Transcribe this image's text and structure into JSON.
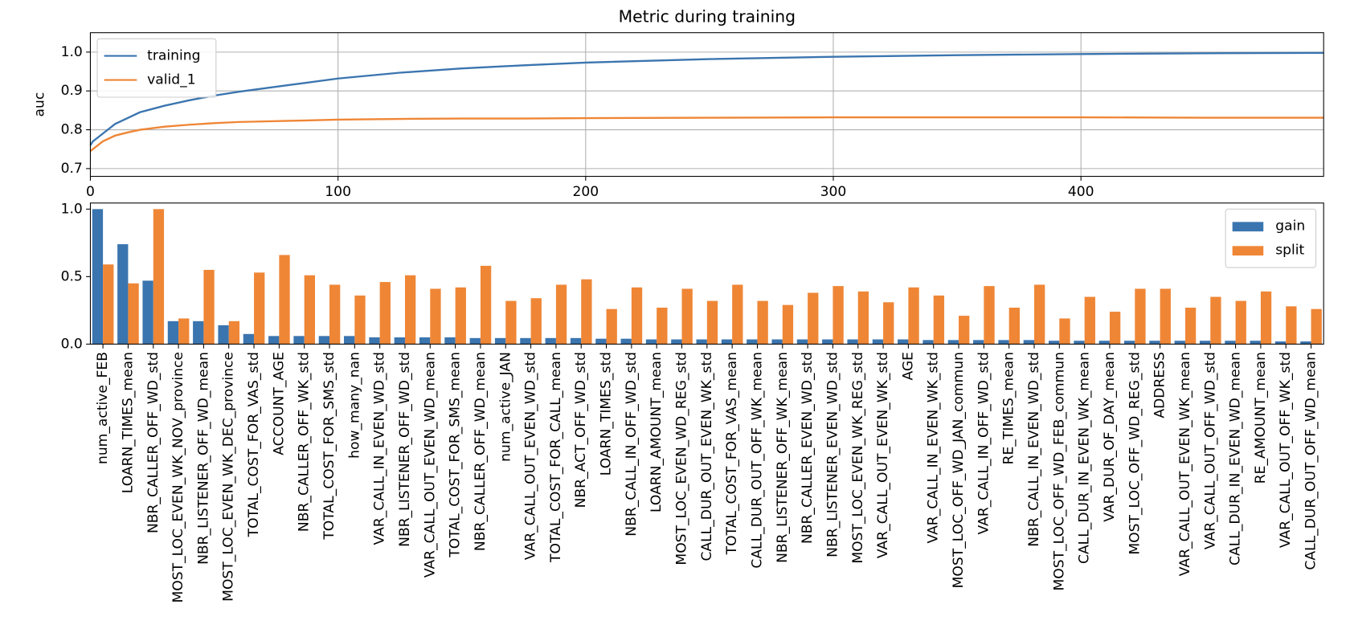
{
  "chart_data": [
    {
      "type": "line",
      "title": "Metric during training",
      "ylabel": "auc",
      "x": [
        0,
        1,
        2,
        5,
        10,
        15,
        20,
        30,
        40,
        50,
        60,
        80,
        100,
        125,
        150,
        175,
        200,
        250,
        300,
        350,
        400,
        450,
        498
      ],
      "series": [
        {
          "name": "training",
          "color": "#3b75af",
          "values": [
            0.76,
            0.77,
            0.775,
            0.79,
            0.815,
            0.83,
            0.845,
            0.862,
            0.876,
            0.888,
            0.898,
            0.915,
            0.932,
            0.947,
            0.958,
            0.966,
            0.973,
            0.982,
            0.988,
            0.992,
            0.995,
            0.997,
            0.998
          ]
        },
        {
          "name": "valid_1",
          "color": "#ef8636",
          "values": [
            0.745,
            0.75,
            0.755,
            0.77,
            0.785,
            0.793,
            0.8,
            0.808,
            0.813,
            0.817,
            0.82,
            0.823,
            0.826,
            0.828,
            0.829,
            0.829,
            0.83,
            0.831,
            0.832,
            0.832,
            0.832,
            0.831,
            0.831
          ]
        }
      ],
      "xlim": [
        0,
        498
      ],
      "xticks": [
        0,
        100,
        200,
        300,
        400
      ],
      "ylim": [
        0.68,
        1.05
      ],
      "yticks": [
        0.7,
        0.8,
        0.9,
        {
          "value": 1.0,
          "label": "1.0"
        }
      ],
      "grid": true,
      "legend": "upper-left"
    },
    {
      "type": "bar",
      "categories": [
        "num_active_FEB",
        "LOARN_TIMES_mean",
        "NBR_CALLER_OFF_WD_std",
        "MOST_LOC_EVEN_WK_NOV_province",
        "NBR_LISTENER_OFF_WD_mean",
        "MOST_LOC_EVEN_WK_DEC_province",
        "TOTAL_COST_FOR_VAS_std",
        "ACCOUNT_AGE",
        "NBR_CALLER_OFF_WK_std",
        "TOTAL_COST_FOR_SMS_std",
        "how_many_nan",
        "VAR_CALL_IN_EVEN_WD_std",
        "NBR_LISTENER_OFF_WD_std",
        "VAR_CALL_OUT_EVEN_WD_mean",
        "TOTAL_COST_FOR_SMS_mean",
        "NBR_CALLER_OFF_WD_mean",
        "num_active_JAN",
        "VAR_CALL_OUT_EVEN_WD_std",
        "TOTAL_COST_FOR_CALL_mean",
        "NBR_ACT_OFF_WD_std",
        "LOARN_TIMES_std",
        "NBR_CALL_IN_OFF_WD_std",
        "LOARN_AMOUNT_mean",
        "MOST_LOC_EVEN_WD_REG_std",
        "CALL_DUR_OUT_EVEN_WK_std",
        "TOTAL_COST_FOR_VAS_mean",
        "CALL_DUR_OUT_OFF_WK_mean",
        "NBR_LISTENER_OFF_WK_mean",
        "NBR_CALLER_EVEN_WD_std",
        "NBR_LISTENER_EVEN_WD_std",
        "MOST_LOC_EVEN_WK_REG_std",
        "VAR_CALL_OUT_EVEN_WK_std",
        "AGE",
        "VAR_CALL_IN_EVEN_WK_std",
        "MOST_LOC_OFF_WD_JAN_commun",
        "VAR_CALL_IN_OFF_WD_std",
        "RE_TIMES_mean",
        "NBR_CALL_IN_EVEN_WD_std",
        "MOST_LOC_OFF_WD_FEB_commun",
        "CALL_DUR_IN_EVEN_WK_mean",
        "VAR_DUR_OF_DAY_mean",
        "MOST_LOC_OFF_WD_REG_std",
        "ADDRESS",
        "VAR_CALL_OUT_EVEN_WK_mean",
        "VAR_CALL_OUT_OFF_WD_std",
        "CALL_DUR_IN_EVEN_WD_mean",
        "RE_AMOUNT_mean",
        "VAR_CALL_OUT_OFF_WK_std",
        "CALL_DUR_OUT_OFF_WD_mean"
      ],
      "series": [
        {
          "name": "gain",
          "color": "#3b75af",
          "values": [
            1.0,
            0.74,
            0.47,
            0.17,
            0.17,
            0.14,
            0.075,
            0.06,
            0.06,
            0.06,
            0.06,
            0.05,
            0.05,
            0.05,
            0.05,
            0.045,
            0.045,
            0.045,
            0.045,
            0.045,
            0.04,
            0.04,
            0.035,
            0.035,
            0.035,
            0.035,
            0.035,
            0.035,
            0.035,
            0.035,
            0.035,
            0.035,
            0.035,
            0.03,
            0.03,
            0.03,
            0.03,
            0.03,
            0.025,
            0.025,
            0.025,
            0.025,
            0.025,
            0.025,
            0.025,
            0.025,
            0.025,
            0.02,
            0.02
          ]
        },
        {
          "name": "split",
          "color": "#ef8636",
          "values": [
            0.59,
            0.45,
            1.0,
            0.19,
            0.55,
            0.17,
            0.53,
            0.66,
            0.51,
            0.44,
            0.36,
            0.46,
            0.51,
            0.41,
            0.42,
            0.58,
            0.32,
            0.34,
            0.44,
            0.48,
            0.26,
            0.42,
            0.27,
            0.41,
            0.32,
            0.44,
            0.32,
            0.29,
            0.38,
            0.43,
            0.39,
            0.31,
            0.42,
            0.36,
            0.21,
            0.43,
            0.27,
            0.44,
            0.19,
            0.35,
            0.24,
            0.41,
            0.41,
            0.27,
            0.35,
            0.32,
            0.39,
            0.28,
            0.26
          ]
        }
      ],
      "ylim": [
        0,
        1.045
      ],
      "yticks": [
        {
          "value": 0.0,
          "label": "0.0"
        },
        0.5,
        {
          "value": 1.0,
          "label": "1.0"
        }
      ],
      "grid": false,
      "legend": "upper-right"
    }
  ]
}
